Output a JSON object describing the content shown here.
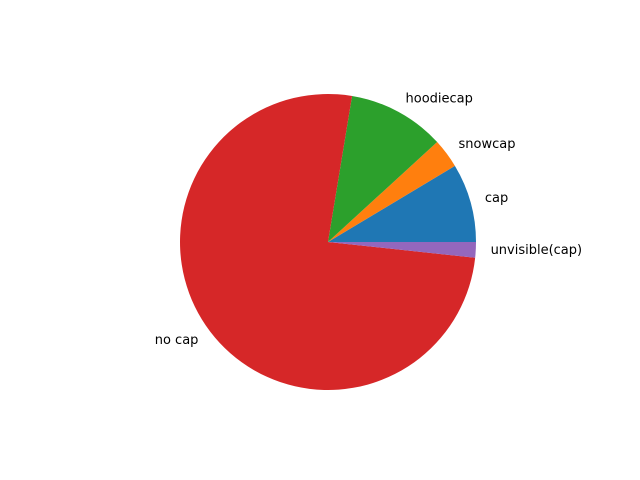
{
  "chart_data": {
    "type": "pie",
    "title": "",
    "slices": [
      {
        "label": "cap",
        "value": 8.6,
        "color": "#1f77b4"
      },
      {
        "label": "snowcap",
        "value": 3.2,
        "color": "#ff7f0e"
      },
      {
        "label": "hoodiecap",
        "value": 10.6,
        "color": "#2ca02c"
      },
      {
        "label": "no cap",
        "value": 75.9,
        "color": "#d62728"
      },
      {
        "label": "unvisible(cap)",
        "value": 1.7,
        "color": "#9467bd"
      }
    ],
    "start_angle_deg": 0,
    "direction": "counterclockwise",
    "legend": "none"
  }
}
